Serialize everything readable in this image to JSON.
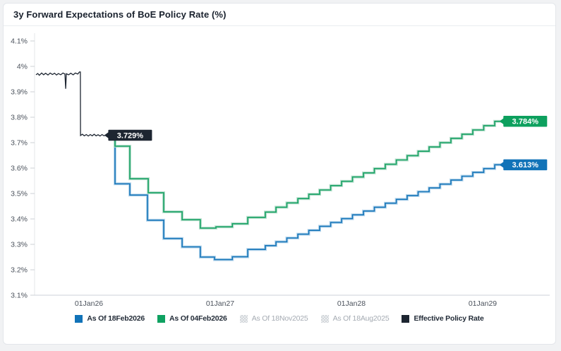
{
  "header": {
    "title": "3y Forward Expectations of BoE Policy Rate (%)"
  },
  "chart_data": {
    "type": "line",
    "title": "3y Forward Expectations of BoE Policy Rate (%)",
    "grid": false,
    "legend_position": "bottom",
    "x_axis": {
      "note": "t = years since 01Jan2026",
      "domain": [
        -0.42,
        3.5
      ],
      "ticks": [
        {
          "t": 0,
          "label": "01Jan26"
        },
        {
          "t": 1,
          "label": "01Jan27"
        },
        {
          "t": 2,
          "label": "01Jan28"
        },
        {
          "t": 3,
          "label": "01Jan29"
        }
      ]
    },
    "y_axis": {
      "min": 3.1,
      "max": 4.1,
      "unit": "%",
      "ticks": [
        {
          "v": 3.1,
          "label": "3.1%"
        },
        {
          "v": 3.2,
          "label": "3.2%"
        },
        {
          "v": 3.3,
          "label": "3.3%"
        },
        {
          "v": 3.4,
          "label": "3.4%"
        },
        {
          "v": 3.5,
          "label": "3.5%"
        },
        {
          "v": 3.6,
          "label": "3.6%"
        },
        {
          "v": 3.7,
          "label": "3.7%"
        },
        {
          "v": 3.8,
          "label": "3.8%"
        },
        {
          "v": 3.9,
          "label": "3.9%"
        },
        {
          "v": 4.0,
          "label": "4%"
        },
        {
          "v": 4.1,
          "label": "4.1%"
        }
      ]
    },
    "series": [
      {
        "name": "As Of 18Feb2026",
        "style": "step",
        "color": "#1474b8",
        "halo": "#aacfe9",
        "t_end": 3.155,
        "end_label": {
          "text": "3.613%",
          "bg": "#1173b8"
        },
        "points": [
          [
            0.177,
            3.729
          ],
          [
            0.199,
            3.538
          ],
          [
            0.312,
            3.494
          ],
          [
            0.446,
            3.395
          ],
          [
            0.57,
            3.323
          ],
          [
            0.71,
            3.29
          ],
          [
            0.849,
            3.25
          ],
          [
            0.957,
            3.24
          ],
          [
            1.093,
            3.251
          ],
          [
            1.21,
            3.28
          ],
          [
            1.344,
            3.295
          ],
          [
            1.425,
            3.31
          ],
          [
            1.508,
            3.325
          ],
          [
            1.592,
            3.34
          ],
          [
            1.675,
            3.355
          ],
          [
            1.758,
            3.371
          ],
          [
            1.842,
            3.386
          ],
          [
            1.925,
            3.401
          ],
          [
            2.008,
            3.416
          ],
          [
            2.092,
            3.431
          ],
          [
            2.175,
            3.446
          ],
          [
            2.258,
            3.462
          ],
          [
            2.342,
            3.477
          ],
          [
            2.425,
            3.492
          ],
          [
            2.508,
            3.507
          ],
          [
            2.592,
            3.522
          ],
          [
            2.675,
            3.537
          ],
          [
            2.758,
            3.553
          ],
          [
            2.842,
            3.568
          ],
          [
            2.925,
            3.583
          ],
          [
            3.008,
            3.598
          ],
          [
            3.092,
            3.613
          ]
        ]
      },
      {
        "name": "As Of 04Feb2026",
        "style": "step",
        "color": "#16a163",
        "halo": "#abd9c4",
        "t_end": 3.155,
        "end_label": {
          "text": "3.784%",
          "bg": "#0da05e"
        },
        "points": [
          [
            0.188,
            3.729
          ],
          [
            0.199,
            3.686
          ],
          [
            0.312,
            3.558
          ],
          [
            0.452,
            3.503
          ],
          [
            0.57,
            3.428
          ],
          [
            0.71,
            3.397
          ],
          [
            0.849,
            3.364
          ],
          [
            0.968,
            3.369
          ],
          [
            1.093,
            3.381
          ],
          [
            1.21,
            3.406
          ],
          [
            1.344,
            3.427
          ],
          [
            1.425,
            3.446
          ],
          [
            1.508,
            3.463
          ],
          [
            1.592,
            3.48
          ],
          [
            1.675,
            3.497
          ],
          [
            1.758,
            3.514
          ],
          [
            1.842,
            3.531
          ],
          [
            1.925,
            3.548
          ],
          [
            2.008,
            3.565
          ],
          [
            2.092,
            3.581
          ],
          [
            2.175,
            3.598
          ],
          [
            2.258,
            3.615
          ],
          [
            2.342,
            3.632
          ],
          [
            2.425,
            3.649
          ],
          [
            2.508,
            3.666
          ],
          [
            2.592,
            3.683
          ],
          [
            2.675,
            3.7
          ],
          [
            2.758,
            3.717
          ],
          [
            2.842,
            3.733
          ],
          [
            2.925,
            3.75
          ],
          [
            3.008,
            3.767
          ],
          [
            3.092,
            3.784
          ]
        ]
      },
      {
        "name": "Effective Policy Rate",
        "style": "line",
        "color": "#1d2531",
        "halo": null,
        "t_end": 0.177,
        "end_label": {
          "text": "3.729%",
          "bg": "#1d2531"
        },
        "points": [
          [
            -0.403,
            3.967
          ],
          [
            -0.39,
            3.972
          ],
          [
            -0.378,
            3.965
          ],
          [
            -0.36,
            3.974
          ],
          [
            -0.345,
            3.967
          ],
          [
            -0.33,
            3.973
          ],
          [
            -0.312,
            3.966
          ],
          [
            -0.295,
            3.974
          ],
          [
            -0.278,
            3.968
          ],
          [
            -0.262,
            3.973
          ],
          [
            -0.247,
            3.966
          ],
          [
            -0.232,
            3.972
          ],
          [
            -0.215,
            3.967
          ],
          [
            -0.198,
            3.974
          ],
          [
            -0.183,
            3.97
          ],
          [
            -0.177,
            3.912
          ],
          [
            -0.172,
            3.971
          ],
          [
            -0.155,
            3.967
          ],
          [
            -0.138,
            3.973
          ],
          [
            -0.12,
            3.967
          ],
          [
            -0.103,
            3.974
          ],
          [
            -0.085,
            3.97
          ],
          [
            -0.072,
            3.978
          ],
          [
            -0.065,
            3.978
          ],
          [
            -0.064,
            3.728
          ],
          [
            -0.05,
            3.733
          ],
          [
            -0.035,
            3.727
          ],
          [
            -0.02,
            3.732
          ],
          [
            -0.005,
            3.726
          ],
          [
            0.01,
            3.732
          ],
          [
            0.025,
            3.727
          ],
          [
            0.04,
            3.733
          ],
          [
            0.055,
            3.727
          ],
          [
            0.07,
            3.731
          ],
          [
            0.085,
            3.726
          ],
          [
            0.1,
            3.732
          ],
          [
            0.115,
            3.727
          ],
          [
            0.13,
            3.731
          ],
          [
            0.145,
            3.727
          ],
          [
            0.16,
            3.732
          ],
          [
            0.177,
            3.729
          ]
        ]
      }
    ],
    "legend": [
      {
        "label": "As Of 18Feb2026",
        "color": "#1173b8",
        "disabled": false
      },
      {
        "label": "As Of 04Feb2026",
        "color": "#0fa161",
        "disabled": false
      },
      {
        "label": "As Of 18Nov2025",
        "color": "#d9dcdf",
        "disabled": true
      },
      {
        "label": "As Of 18Aug2025",
        "color": "#d9dcdf",
        "disabled": true
      },
      {
        "label": "Effective Policy Rate",
        "color": "#1d2531",
        "disabled": false
      }
    ],
    "colors": {
      "axis_line_bottom": "#ccd2d8",
      "axis_line_left": "#e4e7ea",
      "tick_mark": "#ccd1d6",
      "tick_text": "#4b525c",
      "label_text": "#ffffff"
    }
  }
}
